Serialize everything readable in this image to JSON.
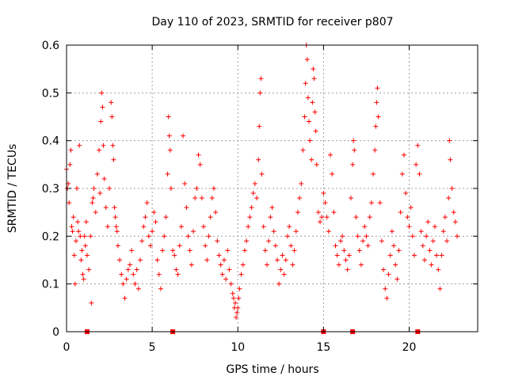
{
  "chart_data": {
    "type": "scatter",
    "title": "Day 110 of 2023, SRMTID for receiver p807",
    "xlabel": "GPS time / hours",
    "ylabel": "SRMTID / TECUs",
    "xlim": [
      0,
      24
    ],
    "ylim": [
      0,
      0.6
    ],
    "xticks": [
      0,
      5,
      10,
      15,
      20
    ],
    "yticks": [
      0,
      0.1,
      0.2,
      0.3,
      0.4,
      0.5,
      0.6
    ],
    "xtick_labels": [
      "0",
      "5",
      "10",
      "15",
      "20"
    ],
    "ytick_labels": [
      "0",
      "0.1",
      "0.2",
      "0.3",
      "0.4",
      "0.5",
      "0.6"
    ],
    "grid": true,
    "marker": "+",
    "color": "#ff0000",
    "series": [
      {
        "name": "SRMTID",
        "points": [
          [
            0.0,
            0.34
          ],
          [
            0.05,
            0.3
          ],
          [
            0.1,
            0.31
          ],
          [
            0.15,
            0.27
          ],
          [
            0.2,
            0.35
          ],
          [
            0.25,
            0.38
          ],
          [
            0.3,
            0.22
          ],
          [
            0.35,
            0.21
          ],
          [
            0.4,
            0.24
          ],
          [
            0.45,
            0.16
          ],
          [
            0.5,
            0.1
          ],
          [
            0.55,
            0.19
          ],
          [
            0.6,
            0.3
          ],
          [
            0.65,
            0.23
          ],
          [
            0.7,
            0.21
          ],
          [
            0.75,
            0.39
          ],
          [
            0.8,
            0.2
          ],
          [
            0.85,
            0.15
          ],
          [
            0.9,
            0.17
          ],
          [
            0.95,
            0.12
          ],
          [
            1.0,
            0.11
          ],
          [
            1.05,
            0.2
          ],
          [
            1.1,
            0.18
          ],
          [
            1.15,
            0.23
          ],
          [
            1.2,
            0.16
          ],
          [
            1.3,
            0.13
          ],
          [
            1.4,
            0.2
          ],
          [
            1.45,
            0.06
          ],
          [
            1.5,
            0.27
          ],
          [
            1.55,
            0.28
          ],
          [
            1.6,
            0.3
          ],
          [
            1.7,
            0.25
          ],
          [
            1.8,
            0.33
          ],
          [
            1.9,
            0.38
          ],
          [
            1.95,
            0.29
          ],
          [
            2.0,
            0.44
          ],
          [
            2.05,
            0.5
          ],
          [
            2.1,
            0.47
          ],
          [
            2.15,
            0.39
          ],
          [
            2.2,
            0.32
          ],
          [
            2.3,
            0.26
          ],
          [
            2.4,
            0.22
          ],
          [
            2.5,
            0.3
          ],
          [
            2.6,
            0.48
          ],
          [
            2.65,
            0.45
          ],
          [
            2.7,
            0.39
          ],
          [
            2.75,
            0.36
          ],
          [
            2.8,
            0.26
          ],
          [
            2.85,
            0.24
          ],
          [
            2.9,
            0.22
          ],
          [
            2.95,
            0.21
          ],
          [
            3.0,
            0.18
          ],
          [
            3.1,
            0.15
          ],
          [
            3.2,
            0.12
          ],
          [
            3.3,
            0.1
          ],
          [
            3.4,
            0.07
          ],
          [
            3.5,
            0.11
          ],
          [
            3.6,
            0.13
          ],
          [
            3.7,
            0.14
          ],
          [
            3.8,
            0.17
          ],
          [
            3.9,
            0.12
          ],
          [
            4.0,
            0.1
          ],
          [
            4.1,
            0.13
          ],
          [
            4.2,
            0.09
          ],
          [
            4.3,
            0.15
          ],
          [
            4.4,
            0.19
          ],
          [
            4.5,
            0.22
          ],
          [
            4.6,
            0.24
          ],
          [
            4.7,
            0.27
          ],
          [
            4.8,
            0.2
          ],
          [
            4.9,
            0.18
          ],
          [
            5.0,
            0.21
          ],
          [
            5.1,
            0.25
          ],
          [
            5.2,
            0.23
          ],
          [
            5.3,
            0.15
          ],
          [
            5.4,
            0.12
          ],
          [
            5.5,
            0.09
          ],
          [
            5.6,
            0.17
          ],
          [
            5.7,
            0.2
          ],
          [
            5.8,
            0.24
          ],
          [
            5.9,
            0.33
          ],
          [
            5.95,
            0.45
          ],
          [
            6.0,
            0.41
          ],
          [
            6.05,
            0.38
          ],
          [
            6.1,
            0.3
          ],
          [
            6.2,
            0.17
          ],
          [
            6.3,
            0.16
          ],
          [
            6.4,
            0.13
          ],
          [
            6.5,
            0.12
          ],
          [
            6.6,
            0.18
          ],
          [
            6.7,
            0.22
          ],
          [
            6.8,
            0.41
          ],
          [
            6.9,
            0.31
          ],
          [
            7.0,
            0.26
          ],
          [
            7.1,
            0.2
          ],
          [
            7.2,
            0.17
          ],
          [
            7.3,
            0.14
          ],
          [
            7.4,
            0.21
          ],
          [
            7.5,
            0.28
          ],
          [
            7.6,
            0.3
          ],
          [
            7.7,
            0.37
          ],
          [
            7.8,
            0.35
          ],
          [
            7.9,
            0.28
          ],
          [
            8.0,
            0.22
          ],
          [
            8.1,
            0.18
          ],
          [
            8.2,
            0.15
          ],
          [
            8.3,
            0.2
          ],
          [
            8.4,
            0.24
          ],
          [
            8.5,
            0.28
          ],
          [
            8.6,
            0.3
          ],
          [
            8.7,
            0.25
          ],
          [
            8.8,
            0.19
          ],
          [
            8.9,
            0.16
          ],
          [
            9.0,
            0.14
          ],
          [
            9.1,
            0.12
          ],
          [
            9.2,
            0.15
          ],
          [
            9.3,
            0.11
          ],
          [
            9.4,
            0.17
          ],
          [
            9.5,
            0.13
          ],
          [
            9.6,
            0.1
          ],
          [
            9.7,
            0.08
          ],
          [
            9.75,
            0.07
          ],
          [
            9.8,
            0.05
          ],
          [
            9.85,
            0.06
          ],
          [
            9.9,
            0.03
          ],
          [
            9.95,
            0.04
          ],
          [
            10.0,
            0.05
          ],
          [
            10.05,
            0.07
          ],
          [
            10.1,
            0.09
          ],
          [
            10.2,
            0.12
          ],
          [
            10.3,
            0.14
          ],
          [
            10.4,
            0.17
          ],
          [
            10.5,
            0.19
          ],
          [
            10.6,
            0.22
          ],
          [
            10.7,
            0.24
          ],
          [
            10.8,
            0.26
          ],
          [
            10.9,
            0.29
          ],
          [
            11.0,
            0.31
          ],
          [
            11.1,
            0.28
          ],
          [
            11.2,
            0.36
          ],
          [
            11.25,
            0.43
          ],
          [
            11.3,
            0.5
          ],
          [
            11.35,
            0.53
          ],
          [
            11.4,
            0.33
          ],
          [
            11.5,
            0.22
          ],
          [
            11.6,
            0.17
          ],
          [
            11.7,
            0.14
          ],
          [
            11.8,
            0.19
          ],
          [
            11.9,
            0.24
          ],
          [
            12.0,
            0.26
          ],
          [
            12.1,
            0.21
          ],
          [
            12.2,
            0.18
          ],
          [
            12.3,
            0.15
          ],
          [
            12.4,
            0.1
          ],
          [
            12.5,
            0.13
          ],
          [
            12.6,
            0.16
          ],
          [
            12.7,
            0.12
          ],
          [
            12.8,
            0.15
          ],
          [
            12.9,
            0.2
          ],
          [
            13.0,
            0.22
          ],
          [
            13.1,
            0.18
          ],
          [
            13.2,
            0.14
          ],
          [
            13.3,
            0.17
          ],
          [
            13.4,
            0.21
          ],
          [
            13.5,
            0.25
          ],
          [
            13.6,
            0.28
          ],
          [
            13.7,
            0.31
          ],
          [
            13.8,
            0.38
          ],
          [
            13.9,
            0.45
          ],
          [
            13.95,
            0.52
          ],
          [
            14.0,
            0.6
          ],
          [
            14.05,
            0.57
          ],
          [
            14.1,
            0.49
          ],
          [
            14.15,
            0.44
          ],
          [
            14.2,
            0.4
          ],
          [
            14.3,
            0.36
          ],
          [
            14.35,
            0.48
          ],
          [
            14.4,
            0.55
          ],
          [
            14.45,
            0.53
          ],
          [
            14.5,
            0.46
          ],
          [
            14.55,
            0.42
          ],
          [
            14.6,
            0.35
          ],
          [
            14.7,
            0.25
          ],
          [
            14.8,
            0.23
          ],
          [
            14.9,
            0.24
          ],
          [
            15.0,
            0.29
          ],
          [
            15.1,
            0.27
          ],
          [
            15.2,
            0.24
          ],
          [
            15.3,
            0.21
          ],
          [
            15.4,
            0.37
          ],
          [
            15.5,
            0.33
          ],
          [
            15.6,
            0.25
          ],
          [
            15.7,
            0.18
          ],
          [
            15.8,
            0.16
          ],
          [
            15.9,
            0.14
          ],
          [
            16.0,
            0.19
          ],
          [
            16.1,
            0.2
          ],
          [
            16.2,
            0.17
          ],
          [
            16.3,
            0.15
          ],
          [
            16.4,
            0.13
          ],
          [
            16.5,
            0.16
          ],
          [
            16.6,
            0.28
          ],
          [
            16.7,
            0.35
          ],
          [
            16.75,
            0.4
          ],
          [
            16.8,
            0.38
          ],
          [
            16.9,
            0.24
          ],
          [
            17.0,
            0.2
          ],
          [
            17.1,
            0.17
          ],
          [
            17.2,
            0.14
          ],
          [
            17.3,
            0.19
          ],
          [
            17.4,
            0.22
          ],
          [
            17.5,
            0.2
          ],
          [
            17.6,
            0.18
          ],
          [
            17.7,
            0.24
          ],
          [
            17.8,
            0.27
          ],
          [
            17.9,
            0.33
          ],
          [
            18.0,
            0.38
          ],
          [
            18.05,
            0.43
          ],
          [
            18.1,
            0.48
          ],
          [
            18.15,
            0.51
          ],
          [
            18.2,
            0.45
          ],
          [
            18.3,
            0.27
          ],
          [
            18.4,
            0.19
          ],
          [
            18.5,
            0.13
          ],
          [
            18.6,
            0.09
          ],
          [
            18.7,
            0.07
          ],
          [
            18.8,
            0.12
          ],
          [
            18.9,
            0.16
          ],
          [
            19.0,
            0.21
          ],
          [
            19.1,
            0.18
          ],
          [
            19.2,
            0.14
          ],
          [
            19.3,
            0.11
          ],
          [
            19.4,
            0.17
          ],
          [
            19.5,
            0.25
          ],
          [
            19.6,
            0.33
          ],
          [
            19.7,
            0.37
          ],
          [
            19.8,
            0.29
          ],
          [
            19.9,
            0.24
          ],
          [
            20.0,
            0.22
          ],
          [
            20.1,
            0.26
          ],
          [
            20.2,
            0.2
          ],
          [
            20.3,
            0.16
          ],
          [
            20.4,
            0.35
          ],
          [
            20.5,
            0.39
          ],
          [
            20.6,
            0.33
          ],
          [
            20.7,
            0.21
          ],
          [
            20.8,
            0.18
          ],
          [
            20.9,
            0.15
          ],
          [
            21.0,
            0.2
          ],
          [
            21.1,
            0.23
          ],
          [
            21.2,
            0.17
          ],
          [
            21.3,
            0.14
          ],
          [
            21.4,
            0.19
          ],
          [
            21.5,
            0.22
          ],
          [
            21.6,
            0.16
          ],
          [
            21.7,
            0.13
          ],
          [
            21.8,
            0.09
          ],
          [
            21.9,
            0.16
          ],
          [
            22.0,
            0.21
          ],
          [
            22.1,
            0.24
          ],
          [
            22.2,
            0.19
          ],
          [
            22.3,
            0.28
          ],
          [
            22.35,
            0.4
          ],
          [
            22.4,
            0.36
          ],
          [
            22.5,
            0.3
          ],
          [
            22.6,
            0.25
          ],
          [
            22.7,
            0.23
          ],
          [
            22.8,
            0.2
          ]
        ]
      }
    ],
    "gap_markers_x": [
      1.2,
      6.2,
      15.0,
      16.7,
      20.5
    ]
  }
}
